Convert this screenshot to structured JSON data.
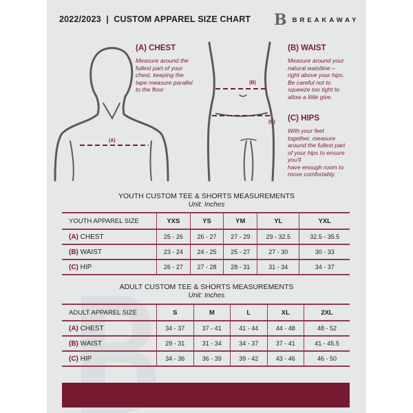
{
  "header": {
    "title": "2022/2023  |  CUSTOM APPAREL SIZE CHART",
    "brand": "BREAKAWAY",
    "logo_letter": "B"
  },
  "measure": {
    "chest": {
      "heading": "(A) CHEST",
      "text": [
        "Measure around the",
        "fullest part of your",
        "chest, keeping the",
        "tape measure parallel",
        "to the floor"
      ],
      "marker": "(A)"
    },
    "waist": {
      "heading": "(B) WAIST",
      "text": [
        "Measure around your",
        "natural waistline –",
        "right above your hips.",
        "Be careful not to",
        "squeeze too tight to",
        "allow a little give."
      ],
      "marker": "(B)"
    },
    "hips": {
      "heading": "(C) HIPS",
      "text": [
        "With your feet",
        "together, measure",
        "around the fullest part",
        "of your hips to ensure",
        "you'll",
        "have enough room to",
        "move comfortably."
      ],
      "marker": "(C)"
    }
  },
  "youth": {
    "title": "YOUTH CUSTOM TEE & SHORTS MEASUREMENTS",
    "unit": "Unit: Inches",
    "header": [
      "YOUTH APPAREL SIZE",
      "YXS",
      "YS",
      "YM",
      "YL",
      "YXL"
    ],
    "rows": [
      {
        "prefix": "(A)",
        "label": "CHEST",
        "values": [
          "25 - 26",
          "26 - 27",
          "27 - 29",
          "29 - 32.5",
          "32.5 - 35.5"
        ]
      },
      {
        "prefix": "(B)",
        "label": "WAIST",
        "values": [
          "23 - 24",
          "24 - 25",
          "25 - 27",
          "27 - 30",
          "30 - 33"
        ]
      },
      {
        "prefix": "(C)",
        "label": "HIP",
        "values": [
          "26 - 27",
          "27 - 28",
          "28 - 31",
          "31 - 34",
          "34 - 37"
        ]
      }
    ]
  },
  "adult": {
    "title": "ADULT CUSTOM TEE & SHORTS MEASUREMENTS",
    "unit": "Unit: Inches",
    "header": [
      "ADULT APPAREL SIZE",
      "S",
      "M",
      "L",
      "XL",
      "2XL"
    ],
    "rows": [
      {
        "prefix": "(A)",
        "label": "CHEST",
        "values": [
          "34 - 37",
          "37 - 41",
          "41 - 44",
          "44 - 48",
          "48 - 52"
        ]
      },
      {
        "prefix": "(B)",
        "label": "WAIST",
        "values": [
          "29 - 31",
          "31 - 34",
          "34 - 37",
          "37 - 41",
          "41 - 45.5"
        ]
      },
      {
        "prefix": "(C)",
        "label": "HIP",
        "values": [
          "34 - 36",
          "36 - 39",
          "39 - 42",
          "43 - 46",
          "46 - 50"
        ]
      }
    ]
  },
  "colors": {
    "accent": "#7a1c30",
    "page": "#e6e7e9",
    "outline": "#555555"
  }
}
